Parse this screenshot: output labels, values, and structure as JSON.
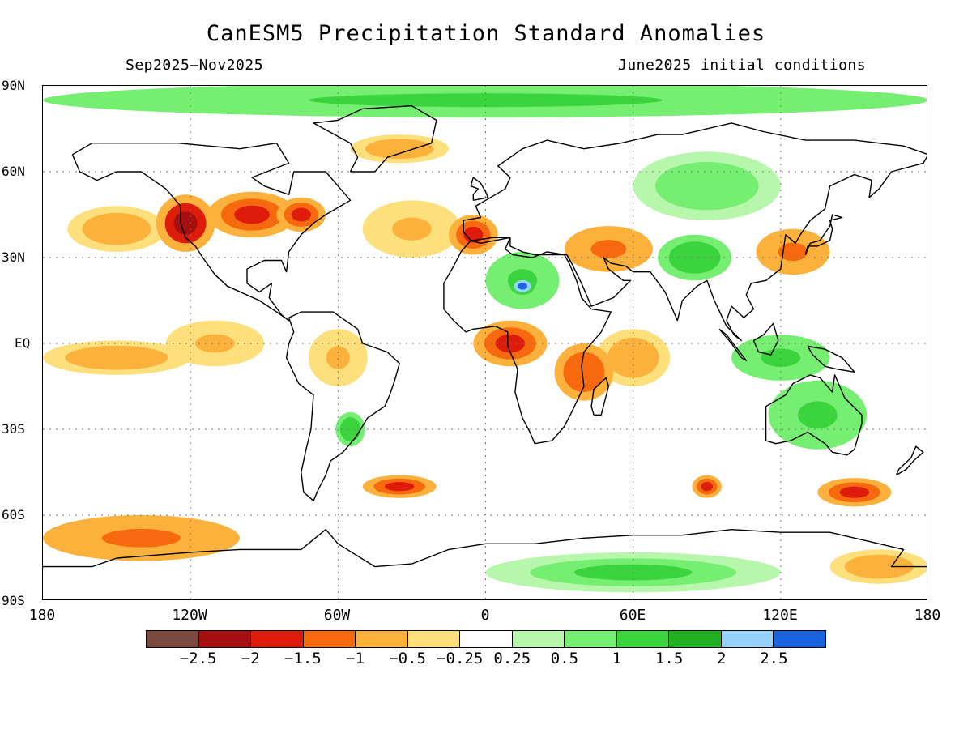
{
  "title": "CanESM5 Precipitation Standard Anomalies",
  "period": "Sep2025–Nov2025",
  "initial_conditions": "June2025 initial conditions",
  "lat_labels": [
    "90N",
    "60N",
    "30N",
    "EQ",
    "30S",
    "60S",
    "90S"
  ],
  "lon_labels": [
    "180",
    "120W",
    "60W",
    "0",
    "60E",
    "120E",
    "180"
  ],
  "colorbar": {
    "colors": [
      "#7a4a40",
      "#a50f0f",
      "#dd1c0b",
      "#f6690e",
      "#fbb13c",
      "#fde07b",
      "#ffffff",
      "#b6f7ac",
      "#76ee72",
      "#3cd43e",
      "#22b020",
      "#96d2fa",
      "#1963dc"
    ],
    "labels": [
      "−2.5",
      "−2",
      "−1.5",
      "−1",
      "−0.5",
      "−0.25",
      "0.25",
      "0.5",
      "1",
      "1.5",
      "2",
      "2.5"
    ]
  },
  "map": {
    "background": "#ffffff",
    "anomaly_regions": [
      {
        "name": "arctic-ocean",
        "lon": 0,
        "lat": 85,
        "r": 180,
        "ry": 6,
        "value": 1.2
      },
      {
        "name": "west-north-america",
        "lon": -122,
        "lat": 42,
        "r": 12,
        "ry": 10,
        "value": -2.2
      },
      {
        "name": "north-pacific-east",
        "lon": -150,
        "lat": 40,
        "r": 20,
        "ry": 8,
        "value": -1.0
      },
      {
        "name": "central-north-america",
        "lon": -95,
        "lat": 45,
        "r": 18,
        "ry": 8,
        "value": -1.6
      },
      {
        "name": "great-lakes-canada",
        "lon": -75,
        "lat": 45,
        "r": 10,
        "ry": 6,
        "value": -2.0
      },
      {
        "name": "north-atlantic",
        "lon": -30,
        "lat": 40,
        "r": 20,
        "ry": 10,
        "value": -0.6
      },
      {
        "name": "north-atlantic-high",
        "lon": -35,
        "lat": 68,
        "r": 20,
        "ry": 5,
        "value": -1.0
      },
      {
        "name": "iberia",
        "lon": -5,
        "lat": 38,
        "r": 10,
        "ry": 7,
        "value": -1.6
      },
      {
        "name": "sahara-wet",
        "lon": 15,
        "lat": 22,
        "r": 15,
        "ry": 10,
        "value": 1.3
      },
      {
        "name": "sahara-core",
        "lon": 15,
        "lat": 20,
        "r": 5,
        "ry": 3,
        "value": 2.7
      },
      {
        "name": "middle-east",
        "lon": 50,
        "lat": 33,
        "r": 18,
        "ry": 8,
        "value": -1.3
      },
      {
        "name": "central-africa",
        "lon": 10,
        "lat": 0,
        "r": 15,
        "ry": 8,
        "value": -1.8
      },
      {
        "name": "east-africa",
        "lon": 40,
        "lat": -10,
        "r": 12,
        "ry": 10,
        "value": -1.5
      },
      {
        "name": "indian-ocean-west",
        "lon": 60,
        "lat": -5,
        "r": 15,
        "ry": 10,
        "value": -0.8
      },
      {
        "name": "siberia",
        "lon": 90,
        "lat": 55,
        "r": 30,
        "ry": 12,
        "value": 0.9
      },
      {
        "name": "asia-central",
        "lon": 85,
        "lat": 30,
        "r": 15,
        "ry": 8,
        "value": 1.4
      },
      {
        "name": "east-china-japan",
        "lon": 125,
        "lat": 32,
        "r": 15,
        "ry": 8,
        "value": -1.3
      },
      {
        "name": "maritime-continent",
        "lon": 120,
        "lat": -5,
        "r": 20,
        "ry": 8,
        "value": 1.2
      },
      {
        "name": "australia",
        "lon": 135,
        "lat": -25,
        "r": 20,
        "ry": 12,
        "value": 1.3
      },
      {
        "name": "tropical-pacific",
        "lon": -150,
        "lat": -5,
        "r": 30,
        "ry": 6,
        "value": -1.0
      },
      {
        "name": "east-pacific",
        "lon": -110,
        "lat": 0,
        "r": 20,
        "ry": 8,
        "value": -0.6
      },
      {
        "name": "south-america-north",
        "lon": -60,
        "lat": -5,
        "r": 12,
        "ry": 10,
        "value": -0.6
      },
      {
        "name": "south-america-south",
        "lon": -55,
        "lat": -30,
        "r": 6,
        "ry": 6,
        "value": 1.4
      },
      {
        "name": "south-atlantic",
        "lon": -35,
        "lat": -50,
        "r": 15,
        "ry": 4,
        "value": -2.0
      },
      {
        "name": "south-indian-east",
        "lon": 90,
        "lat": -50,
        "r": 6,
        "ry": 4,
        "value": -1.8
      },
      {
        "name": "south-pacific-west",
        "lon": 150,
        "lat": -52,
        "r": 15,
        "ry": 5,
        "value": -1.6
      },
      {
        "name": "southern-ocean-pacific",
        "lon": -140,
        "lat": -68,
        "r": 40,
        "ry": 8,
        "value": -1.2
      },
      {
        "name": "antarctica-east",
        "lon": 60,
        "lat": -80,
        "r": 60,
        "ry": 7,
        "value": 1.0
      },
      {
        "name": "antarctica-ross",
        "lon": 160,
        "lat": -78,
        "r": 20,
        "ry": 6,
        "value": -1.0
      }
    ]
  }
}
